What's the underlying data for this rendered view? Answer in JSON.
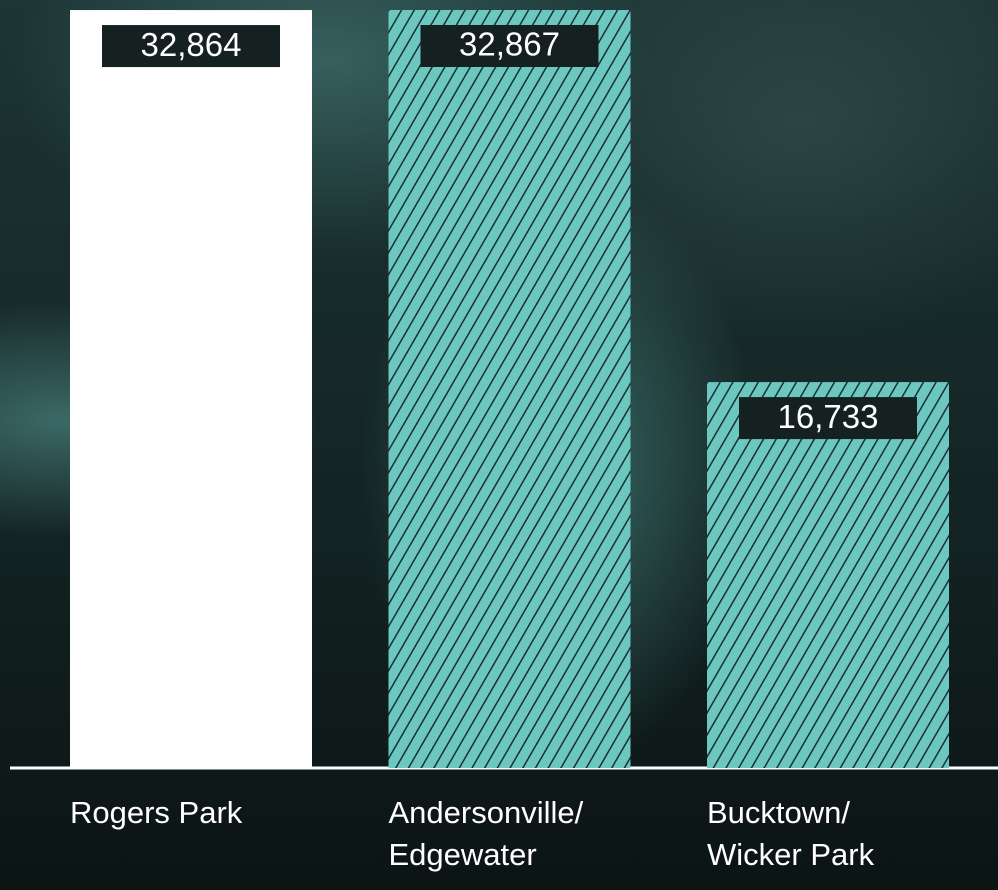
{
  "chart_data": {
    "type": "bar",
    "categories": [
      "Rogers Park",
      "Andersonville/ Edgewater",
      "Bucktown/ Wicker Park"
    ],
    "values": [
      32864,
      32867,
      16733
    ],
    "value_labels": [
      "32,864",
      "32,867",
      "16,733"
    ],
    "colors": [
      "#ffffff",
      "#6cc7c0",
      "#6cc7c0"
    ],
    "patterns": [
      "solid",
      "hatch",
      "hatch"
    ],
    "ylim": [
      0,
      33300
    ]
  }
}
